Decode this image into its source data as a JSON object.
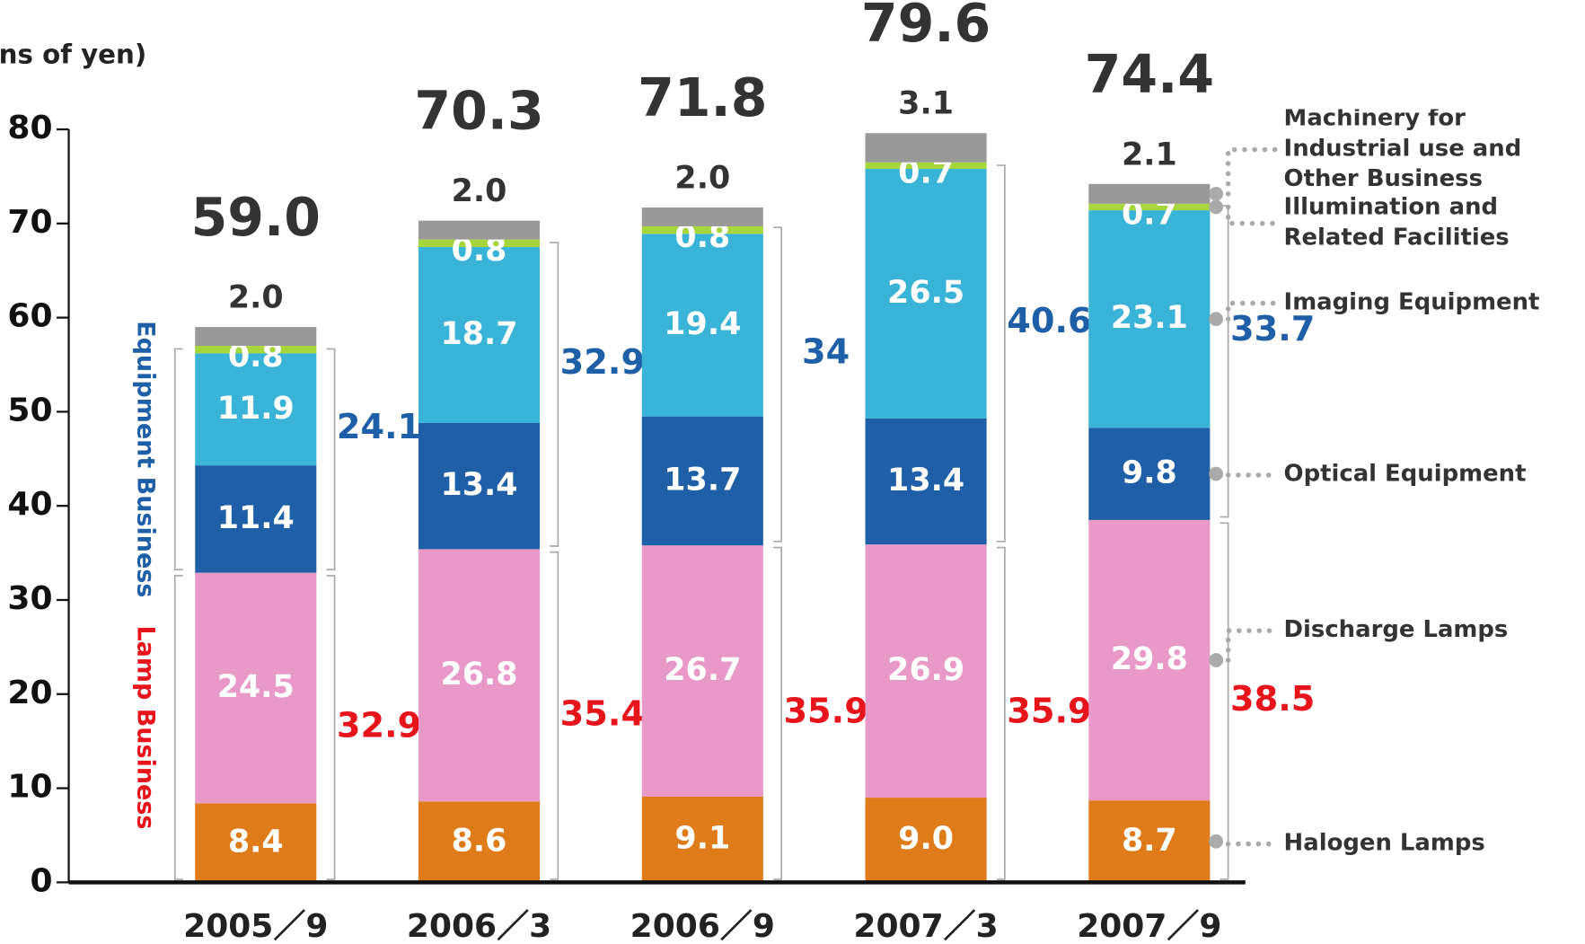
{
  "chart_data": {
    "type": "stacked_bar",
    "y_axis_label": "(billions of yen)",
    "categories": [
      "2005／9",
      "2006／3",
      "2006／9",
      "2007／3",
      "2007／9"
    ],
    "ylim": [
      0,
      80
    ],
    "yticks": [
      0,
      10,
      20,
      30,
      40,
      50,
      60,
      70,
      80
    ],
    "series": [
      {
        "name": "Halogen Lamps",
        "color": "#e07b1a",
        "values": [
          8.4,
          8.6,
          9.1,
          9.0,
          8.7
        ],
        "value_labels": [
          "8.4",
          "8.6",
          "9.1",
          "9.0",
          "8.7"
        ]
      },
      {
        "name": "Discharge Lamps",
        "color": "#e899c8",
        "values": [
          24.5,
          26.8,
          26.7,
          26.9,
          29.8
        ],
        "value_labels": [
          "24.5",
          "26.8",
          "26.7",
          "26.9",
          "29.8"
        ]
      },
      {
        "name": "Optical Equipment",
        "color": "#1f5fa8",
        "values": [
          11.4,
          13.4,
          13.7,
          13.4,
          9.8
        ],
        "value_labels": [
          "11.4",
          "13.4",
          "13.7",
          "13.4",
          "9.8"
        ]
      },
      {
        "name": "Imaging Equipment",
        "color": "#3ab3d8",
        "values": [
          11.9,
          18.7,
          19.4,
          26.5,
          23.1
        ],
        "value_labels": [
          "11.9",
          "18.7",
          "19.4",
          "26.5",
          "23.1"
        ]
      },
      {
        "name": "Illumination and Related Facilities",
        "color": "#a6d63c",
        "values": [
          0.8,
          0.8,
          0.8,
          0.7,
          0.7
        ],
        "value_labels": [
          "0.8",
          "0.8",
          "0.8",
          "0.7",
          "0.7"
        ]
      },
      {
        "name": "Machinery for Industrial use and Other Business",
        "color": "#999999",
        "values": [
          2.0,
          2.0,
          2.0,
          3.1,
          2.1
        ],
        "value_labels": [
          "2.0",
          "2.0",
          "2.0",
          "3.1",
          "2.1"
        ]
      }
    ],
    "totals": {
      "values": [
        59.0,
        70.3,
        71.8,
        79.6,
        74.4
      ],
      "value_labels": [
        "59.0",
        "70.3",
        "71.8",
        "79.6",
        "74.4"
      ]
    },
    "groups": [
      {
        "name": "Lamp Business",
        "color": "#e8141c",
        "values": [
          32.9,
          35.4,
          35.9,
          35.9,
          38.5
        ]
      },
      {
        "name": "Equipment Business",
        "color": "#1f5fa8",
        "values": [
          24.1,
          32.9,
          34.0,
          40.6,
          33.7
        ]
      }
    ]
  }
}
